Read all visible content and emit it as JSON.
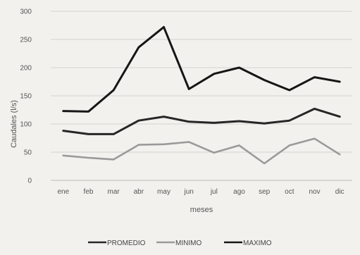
{
  "chart_data": {
    "type": "line",
    "xlabel": "meses",
    "ylabel": "Caudales (l/s)",
    "ylim": [
      0,
      300
    ],
    "yticks": [
      "0",
      "50",
      "100",
      "150",
      "200",
      "250",
      "300"
    ],
    "grid": true,
    "legend_position": "bottom",
    "categories": [
      "ene",
      "feb",
      "mar",
      "abr",
      "may",
      "jun",
      "jul",
      "ago",
      "sep",
      "oct",
      "nov",
      "dic"
    ],
    "series": [
      {
        "name": "PROMEDIO",
        "color": "#262626",
        "values": [
          88,
          82,
          82,
          106,
          113,
          104,
          102,
          105,
          101,
          106,
          127,
          113
        ]
      },
      {
        "name": "MINIMO",
        "color": "#9a9a9a",
        "values": [
          44,
          40,
          37,
          63,
          64,
          68,
          49,
          62,
          30,
          62,
          74,
          46
        ]
      },
      {
        "name": "MAXIMO",
        "color": "#161616",
        "values": [
          123,
          122,
          160,
          236,
          272,
          162,
          189,
          200,
          178,
          160,
          183,
          175
        ]
      }
    ]
  }
}
